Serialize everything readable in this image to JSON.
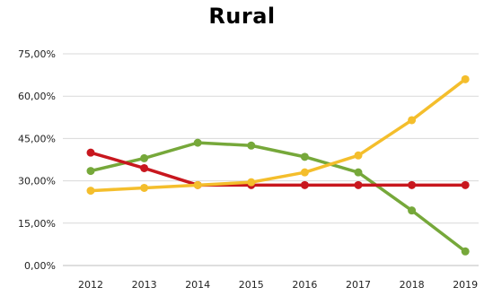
{
  "chart_data": {
    "type": "line",
    "title": "Rural",
    "x": [
      "2012",
      "2013",
      "2014",
      "2015",
      "2016",
      "2017",
      "2018",
      "2019"
    ],
    "y_ticks": [
      "0,00%",
      "15,00%",
      "30,00%",
      "45,00%",
      "60,00%",
      "75,00%"
    ],
    "ylim": [
      0,
      75
    ],
    "grid": "horizontal",
    "legend": "none",
    "series": [
      {
        "color": "#76A83A",
        "values": [
          33.5,
          38.0,
          43.5,
          42.5,
          38.5,
          33.0,
          19.5,
          5.0
        ]
      },
      {
        "color": "#C8171E",
        "values": [
          40.0,
          34.5,
          28.5,
          28.5,
          28.5,
          28.5,
          28.5,
          28.5
        ]
      },
      {
        "color": "#F4BE2C",
        "values": [
          26.5,
          27.5,
          28.5,
          29.5,
          33.0,
          39.0,
          51.5,
          66.0
        ]
      }
    ]
  }
}
